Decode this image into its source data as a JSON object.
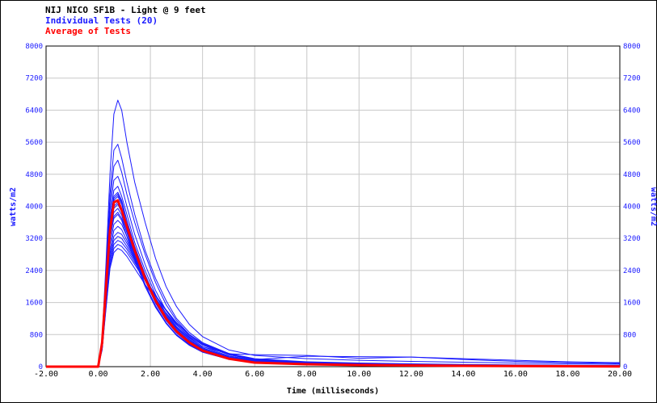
{
  "header": {
    "title": "NIJ NICO SF1B - Light @ 9 feet",
    "legend_individual": "Individual Tests (20)",
    "legend_average": "Average of Tests"
  },
  "colors": {
    "title": "#000000",
    "individual": "#1a1aff",
    "average": "#ff0000",
    "grid": "#c8c8c8"
  },
  "chart_data": {
    "type": "line",
    "title": "NIJ NICO SF1B - Light @ 9 feet",
    "xlabel": "Time (milliseconds)",
    "ylabel": "watts/m2",
    "ylabel_right": "watts/m2",
    "xlim": [
      -2.0,
      20.0
    ],
    "ylim": [
      0,
      8000
    ],
    "x_ticks": [
      "-2.00",
      "0.00",
      "2.00",
      "4.00",
      "6.00",
      "8.00",
      "10.00",
      "12.00",
      "14.00",
      "16.00",
      "18.00",
      "20.00"
    ],
    "y_ticks": [
      "0",
      "800",
      "1600",
      "2400",
      "3200",
      "4000",
      "4800",
      "5600",
      "6400",
      "7200",
      "8000"
    ],
    "grid": true,
    "legend_placement": "top-left",
    "series": [
      {
        "name": "Average of Tests",
        "color": "#ff0000",
        "x": [
          -2.0,
          0.0,
          0.15,
          0.3,
          0.45,
          0.6,
          0.75,
          0.9,
          1.1,
          1.4,
          1.8,
          2.2,
          2.6,
          3.0,
          3.5,
          4.0,
          5.0,
          6.0,
          8.0,
          10.0,
          12.0,
          14.0,
          16.0,
          18.0,
          20.0
        ],
        "y": [
          0,
          0,
          600,
          2000,
          3400,
          4100,
          4150,
          3900,
          3500,
          2900,
          2200,
          1650,
          1200,
          880,
          600,
          400,
          200,
          100,
          60,
          40,
          30,
          20,
          15,
          10,
          5
        ]
      },
      {
        "name": "Test 1",
        "color": "#1a1aff",
        "x": [
          -2.0,
          0.0,
          0.15,
          0.3,
          0.45,
          0.6,
          0.75,
          0.9,
          1.1,
          1.4,
          1.8,
          2.2,
          2.6,
          3.0,
          3.5,
          4.0,
          5.0,
          6.0,
          8.0,
          10.0,
          12.0,
          14.0,
          16.0,
          18.0,
          20.0
        ],
        "y": [
          0,
          0,
          700,
          2600,
          4800,
          6300,
          6650,
          6400,
          5600,
          4600,
          3600,
          2700,
          2000,
          1500,
          1050,
          750,
          420,
          280,
          200,
          160,
          130,
          110,
          90,
          70,
          60
        ]
      },
      {
        "name": "Test 2",
        "color": "#1a1aff",
        "x": [
          -2.0,
          0.0,
          0.15,
          0.3,
          0.45,
          0.6,
          0.75,
          0.9,
          1.1,
          1.4,
          1.8,
          2.2,
          2.6,
          3.0,
          3.5,
          4.0,
          5.0,
          6.0,
          8.0,
          10.0,
          12.0,
          14.0,
          16.0,
          18.0,
          20.0
        ],
        "y": [
          0,
          0,
          650,
          2400,
          4300,
          5400,
          5550,
          5200,
          4600,
          3800,
          2900,
          2200,
          1650,
          1200,
          850,
          600,
          330,
          200,
          120,
          90,
          70,
          55,
          45,
          35,
          30
        ]
      },
      {
        "name": "Test 3",
        "color": "#1a1aff",
        "x": [
          -2.0,
          0.0,
          0.15,
          0.3,
          0.45,
          0.6,
          0.75,
          0.9,
          1.1,
          1.4,
          1.8,
          2.2,
          2.6,
          3.0,
          3.5,
          4.0,
          5.0,
          6.0,
          8.0,
          10.0,
          12.0,
          14.0,
          16.0,
          18.0,
          20.0
        ],
        "y": [
          0,
          0,
          620,
          2300,
          4100,
          5000,
          5150,
          4850,
          4300,
          3600,
          2800,
          2100,
          1550,
          1150,
          800,
          560,
          300,
          180,
          260,
          250,
          240,
          200,
          160,
          120,
          100
        ]
      },
      {
        "name": "Test 4",
        "color": "#1a1aff",
        "x": [
          -2.0,
          0.0,
          0.15,
          0.3,
          0.45,
          0.6,
          0.75,
          0.9,
          1.1,
          1.4,
          1.8,
          2.2,
          2.6,
          3.0,
          3.5,
          4.0,
          5.0,
          6.0,
          8.0,
          10.0,
          12.0,
          14.0,
          16.0,
          18.0,
          20.0
        ],
        "y": [
          0,
          0,
          600,
          2200,
          3900,
          4650,
          4750,
          4500,
          4000,
          3300,
          2550,
          1900,
          1400,
          1050,
          730,
          500,
          320,
          300,
          280,
          210,
          240,
          180,
          130,
          100,
          80
        ]
      },
      {
        "name": "Test 5",
        "color": "#1a1aff",
        "x": [
          -2.0,
          0.0,
          0.15,
          0.3,
          0.45,
          0.6,
          0.75,
          0.9,
          1.1,
          1.4,
          1.8,
          2.2,
          2.6,
          3.0,
          3.5,
          4.0,
          5.0,
          6.0,
          8.0,
          10.0,
          12.0,
          14.0,
          16.0,
          18.0,
          20.0
        ],
        "y": [
          0,
          0,
          580,
          2100,
          3700,
          4400,
          4500,
          4250,
          3800,
          3100,
          2400,
          1800,
          1320,
          980,
          680,
          470,
          250,
          150,
          90,
          70,
          60,
          45,
          35,
          28,
          22
        ]
      },
      {
        "name": "Test 6",
        "color": "#1a1aff",
        "x": [
          -2.0,
          0.0,
          0.15,
          0.3,
          0.45,
          0.6,
          0.75,
          0.9,
          1.1,
          1.4,
          1.8,
          2.2,
          2.6,
          3.0,
          3.5,
          4.0,
          5.0,
          6.0,
          8.0,
          10.0,
          12.0,
          14.0,
          16.0,
          18.0,
          20.0
        ],
        "y": [
          0,
          0,
          560,
          2000,
          3500,
          4200,
          4300,
          4100,
          3650,
          3000,
          2300,
          1700,
          1250,
          920,
          640,
          440,
          230,
          140,
          85,
          65,
          55,
          42,
          33,
          26,
          20
        ]
      },
      {
        "name": "Test 7",
        "color": "#1a1aff",
        "x": [
          -2.0,
          0.0,
          0.15,
          0.3,
          0.45,
          0.6,
          0.75,
          0.9,
          1.1,
          1.4,
          1.8,
          2.2,
          2.6,
          3.0,
          3.5,
          4.0,
          5.0,
          6.0,
          8.0,
          10.0,
          12.0,
          14.0,
          16.0,
          18.0,
          20.0
        ],
        "y": [
          0,
          0,
          540,
          1900,
          3300,
          3950,
          4050,
          3850,
          3450,
          2850,
          2200,
          1650,
          1220,
          900,
          620,
          430,
          220,
          130,
          80,
          60,
          50,
          40,
          30,
          24,
          18
        ]
      },
      {
        "name": "Test 8",
        "color": "#1a1aff",
        "x": [
          -2.0,
          0.0,
          0.15,
          0.3,
          0.45,
          0.6,
          0.75,
          0.9,
          1.1,
          1.4,
          1.8,
          2.2,
          2.6,
          3.0,
          3.5,
          4.0,
          5.0,
          6.0,
          8.0,
          10.0,
          12.0,
          14.0,
          16.0,
          18.0,
          20.0
        ],
        "y": [
          0,
          0,
          520,
          1850,
          3200,
          3750,
          3850,
          3700,
          3350,
          2800,
          2150,
          1620,
          1200,
          880,
          610,
          420,
          210,
          125,
          75,
          58,
          48,
          38,
          28,
          22,
          16
        ]
      },
      {
        "name": "Test 9",
        "color": "#1a1aff",
        "x": [
          -2.0,
          0.0,
          0.15,
          0.3,
          0.45,
          0.6,
          0.75,
          0.9,
          1.1,
          1.4,
          1.8,
          2.2,
          2.6,
          3.0,
          3.5,
          4.0,
          5.0,
          6.0,
          8.0,
          10.0,
          12.0,
          14.0,
          16.0,
          18.0,
          20.0
        ],
        "y": [
          0,
          0,
          500,
          1800,
          3050,
          3550,
          3650,
          3550,
          3250,
          2750,
          2150,
          1650,
          1250,
          930,
          650,
          450,
          230,
          135,
          80,
          60,
          50,
          40,
          30,
          24,
          18
        ]
      },
      {
        "name": "Test 10",
        "color": "#1a1aff",
        "x": [
          -2.0,
          0.0,
          0.15,
          0.3,
          0.45,
          0.6,
          0.75,
          0.9,
          1.1,
          1.4,
          1.8,
          2.2,
          2.6,
          3.0,
          3.5,
          4.0,
          5.0,
          6.0,
          8.0,
          10.0,
          12.0,
          14.0,
          16.0,
          18.0,
          20.0
        ],
        "y": [
          0,
          0,
          480,
          1700,
          2900,
          3400,
          3500,
          3420,
          3150,
          2700,
          2150,
          1680,
          1280,
          960,
          680,
          470,
          250,
          150,
          90,
          65,
          55,
          42,
          32,
          25,
          20
        ]
      },
      {
        "name": "Test 11",
        "color": "#1a1aff",
        "x": [
          -2.0,
          0.0,
          0.15,
          0.3,
          0.45,
          0.6,
          0.75,
          0.9,
          1.1,
          1.4,
          1.8,
          2.2,
          2.6,
          3.0,
          3.5,
          4.0,
          5.0,
          6.0,
          8.0,
          10.0,
          12.0,
          14.0,
          16.0,
          18.0,
          20.0
        ],
        "y": [
          0,
          0,
          460,
          1650,
          2800,
          3250,
          3350,
          3300,
          3080,
          2680,
          2180,
          1720,
          1320,
          1000,
          710,
          500,
          270,
          160,
          95,
          70,
          58,
          45,
          35,
          27,
          21
        ]
      },
      {
        "name": "Test 12",
        "color": "#1a1aff",
        "x": [
          -2.0,
          0.0,
          0.15,
          0.3,
          0.45,
          0.6,
          0.75,
          0.9,
          1.1,
          1.4,
          1.8,
          2.2,
          2.6,
          3.0,
          3.5,
          4.0,
          5.0,
          6.0,
          8.0,
          10.0,
          12.0,
          14.0,
          16.0,
          18.0,
          20.0
        ],
        "y": [
          0,
          0,
          450,
          1600,
          2700,
          3150,
          3250,
          3200,
          3000,
          2650,
          2200,
          1780,
          1400,
          1080,
          780,
          560,
          310,
          180,
          105,
          75,
          60,
          48,
          37,
          28,
          22
        ]
      },
      {
        "name": "Test 13",
        "color": "#1a1aff",
        "x": [
          -2.0,
          0.0,
          0.15,
          0.3,
          0.45,
          0.6,
          0.75,
          0.9,
          1.1,
          1.4,
          1.8,
          2.2,
          2.6,
          3.0,
          3.5,
          4.0,
          5.0,
          6.0,
          8.0,
          10.0,
          12.0,
          14.0,
          16.0,
          18.0,
          20.0
        ],
        "y": [
          0,
          0,
          440,
          1550,
          2600,
          3050,
          3150,
          3100,
          2930,
          2600,
          2180,
          1780,
          1420,
          1100,
          800,
          580,
          330,
          190,
          110,
          78,
          62,
          50,
          38,
          29,
          23
        ]
      },
      {
        "name": "Test 14",
        "color": "#1a1aff",
        "x": [
          -2.0,
          0.0,
          0.15,
          0.3,
          0.45,
          0.6,
          0.75,
          0.9,
          1.1,
          1.4,
          1.8,
          2.2,
          2.6,
          3.0,
          3.5,
          4.0,
          5.0,
          6.0,
          8.0,
          10.0,
          12.0,
          14.0,
          16.0,
          18.0,
          20.0
        ],
        "y": [
          0,
          0,
          430,
          1500,
          2500,
          2950,
          3050,
          3000,
          2850,
          2550,
          2150,
          1760,
          1400,
          1090,
          790,
          570,
          320,
          185,
          108,
          76,
          60,
          48,
          36,
          28,
          22
        ]
      },
      {
        "name": "Test 15",
        "color": "#1a1aff",
        "x": [
          -2.0,
          0.0,
          0.15,
          0.3,
          0.45,
          0.6,
          0.75,
          0.9,
          1.1,
          1.4,
          1.8,
          2.2,
          2.6,
          3.0,
          3.5,
          4.0,
          5.0,
          6.0,
          8.0,
          10.0,
          12.0,
          14.0,
          16.0,
          18.0,
          20.0
        ],
        "y": [
          0,
          0,
          420,
          1450,
          2450,
          2850,
          2950,
          2900,
          2750,
          2450,
          2050,
          1680,
          1340,
          1040,
          750,
          540,
          300,
          170,
          100,
          72,
          58,
          46,
          35,
          27,
          21
        ]
      },
      {
        "name": "Test 16",
        "color": "#1a1aff",
        "x": [
          -2.0,
          0.0,
          0.15,
          0.3,
          0.45,
          0.6,
          0.75,
          0.9,
          1.1,
          1.4,
          1.8,
          2.2,
          2.6,
          3.0,
          3.5,
          4.0,
          5.0,
          6.0,
          8.0,
          10.0,
          12.0,
          14.0,
          16.0,
          18.0,
          20.0
        ],
        "y": [
          0,
          0,
          600,
          2150,
          3600,
          4250,
          4350,
          4150,
          3650,
          2950,
          2250,
          1650,
          1200,
          880,
          600,
          410,
          210,
          120,
          70,
          55,
          45,
          36,
          28,
          22,
          17
        ]
      },
      {
        "name": "Test 17",
        "color": "#1a1aff",
        "x": [
          -2.0,
          0.0,
          0.15,
          0.3,
          0.45,
          0.6,
          0.75,
          0.9,
          1.1,
          1.4,
          1.8,
          2.2,
          2.6,
          3.0,
          3.5,
          4.0,
          5.0,
          6.0,
          8.0,
          10.0,
          12.0,
          14.0,
          16.0,
          18.0,
          20.0
        ],
        "y": [
          0,
          0,
          590,
          2100,
          3550,
          4150,
          4250,
          4050,
          3550,
          2850,
          2150,
          1580,
          1150,
          840,
          570,
          390,
          200,
          115,
          68,
          52,
          43,
          34,
          26,
          21,
          16
        ]
      },
      {
        "name": "Test 18",
        "color": "#1a1aff",
        "x": [
          -2.0,
          0.0,
          0.15,
          0.3,
          0.45,
          0.6,
          0.75,
          0.9,
          1.1,
          1.4,
          1.8,
          2.2,
          2.6,
          3.0,
          3.5,
          4.0,
          5.0,
          6.0,
          8.0,
          10.0,
          12.0,
          14.0,
          16.0,
          18.0,
          20.0
        ],
        "y": [
          0,
          0,
          570,
          2050,
          3450,
          4000,
          4100,
          3900,
          3420,
          2750,
          2050,
          1500,
          1080,
          780,
          530,
          360,
          185,
          105,
          62,
          48,
          40,
          32,
          25,
          20,
          15
        ]
      },
      {
        "name": "Test 19",
        "color": "#1a1aff",
        "x": [
          -2.0,
          0.0,
          0.15,
          0.3,
          0.45,
          0.6,
          0.75,
          0.9,
          1.1,
          1.4,
          1.8,
          2.2,
          2.6,
          3.0,
          3.5,
          4.0,
          5.0,
          6.0,
          8.0,
          10.0,
          12.0,
          14.0,
          16.0,
          18.0,
          20.0
        ],
        "y": [
          0,
          0,
          550,
          1950,
          3300,
          3850,
          3950,
          3780,
          3350,
          2720,
          2050,
          1520,
          1100,
          800,
          550,
          370,
          190,
          110,
          65,
          50,
          42,
          33,
          26,
          20,
          15
        ]
      },
      {
        "name": "Test 20",
        "color": "#1a1aff",
        "x": [
          -2.0,
          0.0,
          0.15,
          0.3,
          0.45,
          0.6,
          0.75,
          0.9,
          1.1,
          1.4,
          1.8,
          2.2,
          2.6,
          3.0,
          3.5,
          4.0,
          5.0,
          6.0,
          8.0,
          10.0,
          12.0,
          14.0,
          16.0,
          18.0,
          20.0
        ],
        "y": [
          0,
          0,
          530,
          1900,
          3200,
          3700,
          3800,
          3650,
          3250,
          2650,
          2000,
          1480,
          1080,
          790,
          540,
          365,
          185,
          108,
          64,
          50,
          42,
          33,
          26,
          20,
          15
        ]
      }
    ]
  }
}
